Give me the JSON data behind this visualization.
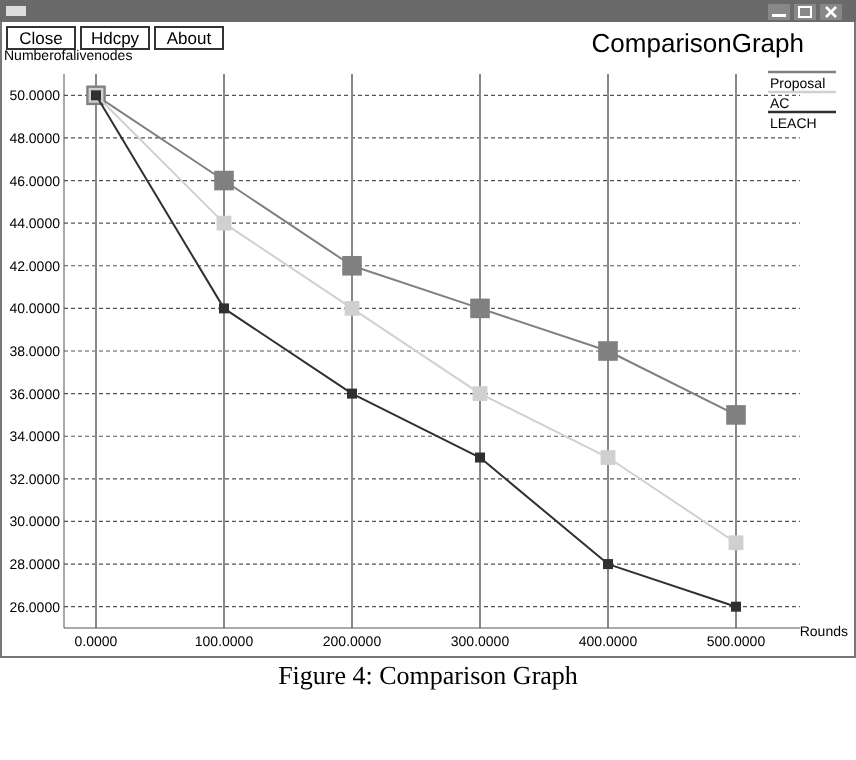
{
  "chart_data": {
    "type": "line",
    "title": "ComparisonGraph",
    "xlabel": "Rounds",
    "ylabel": "Numberofalivenodes",
    "annotations": [
      "Close",
      "Hdcpy",
      "About",
      "Figure 4: Comparison Graph"
    ],
    "x": [
      0,
      100,
      200,
      300,
      400,
      500
    ],
    "series": [
      {
        "name": "Proposal",
        "color": "#808080",
        "values": [
          50,
          46,
          42,
          40,
          38,
          35
        ]
      },
      {
        "name": "AC",
        "color": "#d0d0d0",
        "values": [
          50,
          44,
          40,
          36,
          33,
          29
        ]
      },
      {
        "name": "LEACH",
        "color": "#303030",
        "values": [
          50,
          40,
          36,
          33,
          28,
          26
        ]
      }
    ],
    "xlim": [
      -25,
      550
    ],
    "ylim": [
      25,
      51
    ],
    "xticks": [
      {
        "value": 0,
        "label": "0.0000"
      },
      {
        "value": 100,
        "label": "100.0000"
      },
      {
        "value": 200,
        "label": "200.0000"
      },
      {
        "value": 300,
        "label": "300.0000"
      },
      {
        "value": 400,
        "label": "400.0000"
      },
      {
        "value": 500,
        "label": "500.0000"
      }
    ],
    "yticks": [
      {
        "value": 26,
        "label": "26.0000"
      },
      {
        "value": 28,
        "label": "28.0000"
      },
      {
        "value": 30,
        "label": "30.0000"
      },
      {
        "value": 32,
        "label": "32.0000"
      },
      {
        "value": 34,
        "label": "34.0000"
      },
      {
        "value": 36,
        "label": "36.0000"
      },
      {
        "value": 38,
        "label": "38.0000"
      },
      {
        "value": 40,
        "label": "40.0000"
      },
      {
        "value": 42,
        "label": "42.0000"
      },
      {
        "value": 44,
        "label": "44.0000"
      },
      {
        "value": 46,
        "label": "46.0000"
      },
      {
        "value": 48,
        "label": "48.0000"
      },
      {
        "value": 50,
        "label": "50.0000"
      }
    ],
    "grid": true,
    "legend": "top right",
    "marker": "square",
    "line_style": "solid"
  }
}
